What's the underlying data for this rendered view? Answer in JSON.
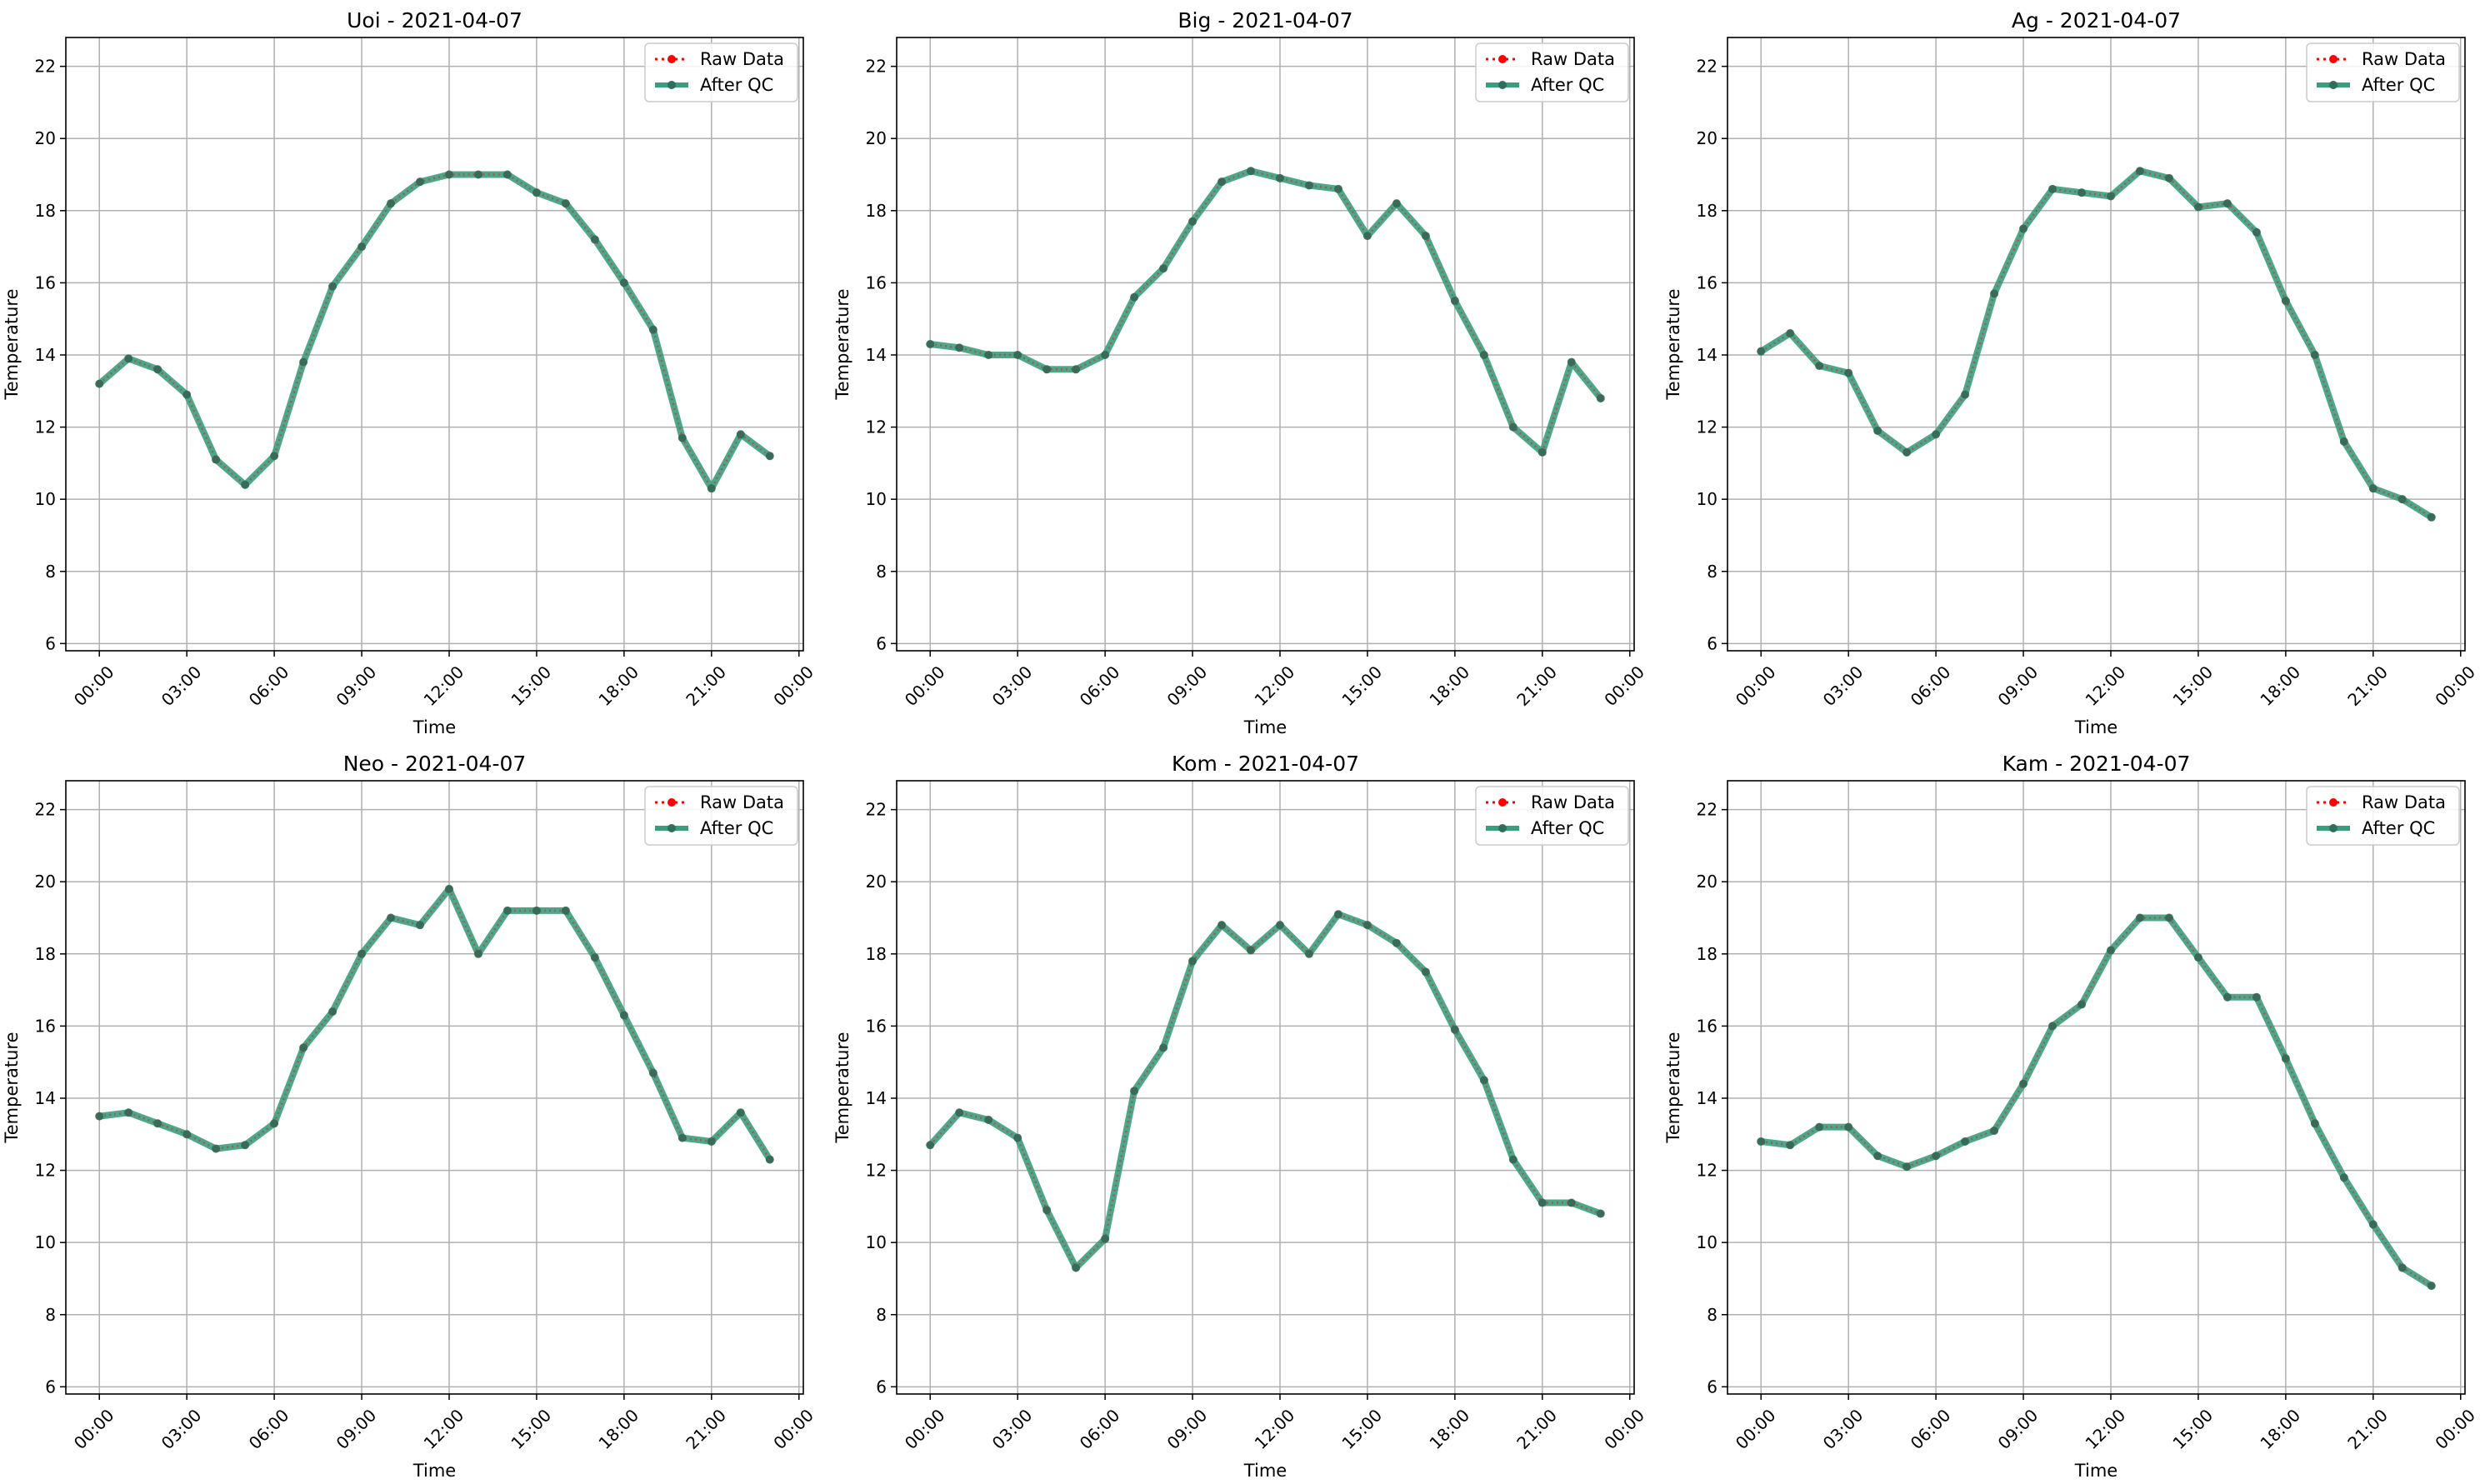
{
  "figure": {
    "background": "#ffffff",
    "grid_color": "#b0b0b0",
    "raw_color": "#ff0000",
    "qc_color": "#3a9e7e",
    "qc_marker_color": "#2f6e5a"
  },
  "chart_data": [
    {
      "type": "line",
      "title": "Uoi - 2021-04-07",
      "xlabel": "Time",
      "ylabel": "Temperature",
      "xticks": [
        "00:00",
        "03:00",
        "06:00",
        "09:00",
        "12:00",
        "15:00",
        "18:00",
        "21:00",
        "00:00"
      ],
      "yticks": [
        "6",
        "8",
        "10",
        "12",
        "14",
        "16",
        "18",
        "20",
        "22"
      ],
      "xlim": [
        -1.15,
        24.15
      ],
      "ylim": [
        5.8,
        22.8
      ],
      "grid": true,
      "legend_position": "top-right",
      "x": [
        0,
        1,
        2,
        3,
        4,
        5,
        6,
        7,
        8,
        9,
        10,
        11,
        12,
        13,
        14,
        15,
        16,
        17,
        18,
        19,
        20,
        21,
        22,
        23
      ],
      "series": [
        {
          "name": "Raw Data",
          "values": [
            13.2,
            13.9,
            13.6,
            12.9,
            11.1,
            10.4,
            11.2,
            13.8,
            15.9,
            17.0,
            18.2,
            18.8,
            19.0,
            19.0,
            19.0,
            18.5,
            18.2,
            17.2,
            16.0,
            14.7,
            11.7,
            10.3,
            11.8,
            11.2
          ]
        },
        {
          "name": "After QC",
          "values": [
            13.2,
            13.9,
            13.6,
            12.9,
            11.1,
            10.4,
            11.2,
            13.8,
            15.9,
            17.0,
            18.2,
            18.8,
            19.0,
            19.0,
            19.0,
            18.5,
            18.2,
            17.2,
            16.0,
            14.7,
            11.7,
            10.3,
            11.8,
            11.2
          ]
        }
      ]
    },
    {
      "type": "line",
      "title": "Big - 2021-04-07",
      "xlabel": "Time",
      "ylabel": "Temperature",
      "xticks": [
        "00:00",
        "03:00",
        "06:00",
        "09:00",
        "12:00",
        "15:00",
        "18:00",
        "21:00",
        "00:00"
      ],
      "yticks": [
        "6",
        "8",
        "10",
        "12",
        "14",
        "16",
        "18",
        "20",
        "22"
      ],
      "xlim": [
        -1.15,
        24.15
      ],
      "ylim": [
        5.8,
        22.8
      ],
      "grid": true,
      "legend_position": "top-right",
      "x": [
        0,
        1,
        2,
        3,
        4,
        5,
        6,
        7,
        8,
        9,
        10,
        11,
        12,
        13,
        14,
        15,
        16,
        17,
        18,
        19,
        20,
        21,
        22,
        23
      ],
      "series": [
        {
          "name": "Raw Data",
          "values": [
            14.3,
            14.2,
            14.0,
            14.0,
            13.6,
            13.6,
            14.0,
            15.6,
            16.4,
            17.7,
            18.8,
            19.1,
            18.9,
            18.7,
            18.6,
            17.3,
            18.2,
            17.3,
            15.5,
            14.0,
            12.0,
            11.3,
            13.8,
            12.8
          ]
        },
        {
          "name": "After QC",
          "values": [
            14.3,
            14.2,
            14.0,
            14.0,
            13.6,
            13.6,
            14.0,
            15.6,
            16.4,
            17.7,
            18.8,
            19.1,
            18.9,
            18.7,
            18.6,
            17.3,
            18.2,
            17.3,
            15.5,
            14.0,
            12.0,
            11.3,
            13.8,
            12.8
          ]
        }
      ]
    },
    {
      "type": "line",
      "title": "Ag - 2021-04-07",
      "xlabel": "Time",
      "ylabel": "Temperature",
      "xticks": [
        "00:00",
        "03:00",
        "06:00",
        "09:00",
        "12:00",
        "15:00",
        "18:00",
        "21:00",
        "00:00"
      ],
      "yticks": [
        "6",
        "8",
        "10",
        "12",
        "14",
        "16",
        "18",
        "20",
        "22"
      ],
      "xlim": [
        -1.15,
        24.15
      ],
      "ylim": [
        5.8,
        22.8
      ],
      "grid": true,
      "legend_position": "top-right",
      "x": [
        0,
        1,
        2,
        3,
        4,
        5,
        6,
        7,
        8,
        9,
        10,
        11,
        12,
        13,
        14,
        15,
        16,
        17,
        18,
        19,
        20,
        21,
        22,
        23
      ],
      "series": [
        {
          "name": "Raw Data",
          "values": [
            14.1,
            14.6,
            13.7,
            13.5,
            11.9,
            11.3,
            11.8,
            12.9,
            15.7,
            17.5,
            18.6,
            18.5,
            18.4,
            19.1,
            18.9,
            18.1,
            18.2,
            17.4,
            15.5,
            14.0,
            11.6,
            10.3,
            10.0,
            9.5
          ]
        },
        {
          "name": "After QC",
          "values": [
            14.1,
            14.6,
            13.7,
            13.5,
            11.9,
            11.3,
            11.8,
            12.9,
            15.7,
            17.5,
            18.6,
            18.5,
            18.4,
            19.1,
            18.9,
            18.1,
            18.2,
            17.4,
            15.5,
            14.0,
            11.6,
            10.3,
            10.0,
            9.5
          ]
        }
      ]
    },
    {
      "type": "line",
      "title": "Neo - 2021-04-07",
      "xlabel": "Time",
      "ylabel": "Temperature",
      "xticks": [
        "00:00",
        "03:00",
        "06:00",
        "09:00",
        "12:00",
        "15:00",
        "18:00",
        "21:00",
        "00:00"
      ],
      "yticks": [
        "6",
        "8",
        "10",
        "12",
        "14",
        "16",
        "18",
        "20",
        "22"
      ],
      "xlim": [
        -1.15,
        24.15
      ],
      "ylim": [
        5.8,
        22.8
      ],
      "grid": true,
      "legend_position": "top-right",
      "x": [
        0,
        1,
        2,
        3,
        4,
        5,
        6,
        7,
        8,
        9,
        10,
        11,
        12,
        13,
        14,
        15,
        16,
        17,
        18,
        19,
        20,
        21,
        22,
        23
      ],
      "series": [
        {
          "name": "Raw Data",
          "values": [
            13.5,
            13.6,
            13.3,
            13.0,
            12.6,
            12.7,
            13.3,
            15.4,
            16.4,
            18.0,
            19.0,
            18.8,
            19.8,
            18.0,
            19.2,
            19.2,
            19.2,
            17.9,
            16.3,
            14.7,
            12.9,
            12.8,
            13.6,
            12.3
          ]
        },
        {
          "name": "After QC",
          "values": [
            13.5,
            13.6,
            13.3,
            13.0,
            12.6,
            12.7,
            13.3,
            15.4,
            16.4,
            18.0,
            19.0,
            18.8,
            19.8,
            18.0,
            19.2,
            19.2,
            19.2,
            17.9,
            16.3,
            14.7,
            12.9,
            12.8,
            13.6,
            12.3
          ]
        }
      ]
    },
    {
      "type": "line",
      "title": "Kom - 2021-04-07",
      "xlabel": "Time",
      "ylabel": "Temperature",
      "xticks": [
        "00:00",
        "03:00",
        "06:00",
        "09:00",
        "12:00",
        "15:00",
        "18:00",
        "21:00",
        "00:00"
      ],
      "yticks": [
        "6",
        "8",
        "10",
        "12",
        "14",
        "16",
        "18",
        "20",
        "22"
      ],
      "xlim": [
        -1.15,
        24.15
      ],
      "ylim": [
        5.8,
        22.8
      ],
      "grid": true,
      "legend_position": "top-right",
      "x": [
        0,
        1,
        2,
        3,
        4,
        5,
        6,
        7,
        8,
        9,
        10,
        11,
        12,
        13,
        14,
        15,
        16,
        17,
        18,
        19,
        20,
        21,
        22,
        23
      ],
      "series": [
        {
          "name": "Raw Data",
          "values": [
            12.7,
            13.6,
            13.4,
            12.9,
            10.9,
            9.3,
            10.1,
            14.2,
            15.4,
            17.8,
            18.8,
            18.1,
            18.8,
            18.0,
            19.1,
            18.8,
            18.3,
            17.5,
            15.9,
            14.5,
            12.3,
            11.1,
            11.1,
            10.8
          ]
        },
        {
          "name": "After QC",
          "values": [
            12.7,
            13.6,
            13.4,
            12.9,
            10.9,
            9.3,
            10.1,
            14.2,
            15.4,
            17.8,
            18.8,
            18.1,
            18.8,
            18.0,
            19.1,
            18.8,
            18.3,
            17.5,
            15.9,
            14.5,
            12.3,
            11.1,
            11.1,
            10.8
          ]
        }
      ]
    },
    {
      "type": "line",
      "title": "Kam - 2021-04-07",
      "xlabel": "Time",
      "ylabel": "Temperature",
      "xticks": [
        "00:00",
        "03:00",
        "06:00",
        "09:00",
        "12:00",
        "15:00",
        "18:00",
        "21:00",
        "00:00"
      ],
      "yticks": [
        "6",
        "8",
        "10",
        "12",
        "14",
        "16",
        "18",
        "20",
        "22"
      ],
      "xlim": [
        -1.15,
        24.15
      ],
      "ylim": [
        5.8,
        22.8
      ],
      "grid": true,
      "legend_position": "top-right",
      "x": [
        0,
        1,
        2,
        3,
        4,
        5,
        6,
        7,
        8,
        9,
        10,
        11,
        12,
        13,
        14,
        15,
        16,
        17,
        18,
        19,
        20,
        21,
        22,
        23
      ],
      "series": [
        {
          "name": "Raw Data",
          "values": [
            12.8,
            12.7,
            13.2,
            13.2,
            12.4,
            12.1,
            12.4,
            12.8,
            13.1,
            14.4,
            16.0,
            16.6,
            18.1,
            19.0,
            19.0,
            17.9,
            16.8,
            16.8,
            15.1,
            13.3,
            11.8,
            10.5,
            9.3,
            8.8
          ]
        },
        {
          "name": "After QC",
          "values": [
            12.8,
            12.7,
            13.2,
            13.2,
            12.4,
            12.1,
            12.4,
            12.8,
            13.1,
            14.4,
            16.0,
            16.6,
            18.1,
            19.0,
            19.0,
            17.9,
            16.8,
            16.8,
            15.1,
            13.3,
            11.8,
            10.5,
            9.3,
            8.8
          ]
        }
      ]
    }
  ]
}
